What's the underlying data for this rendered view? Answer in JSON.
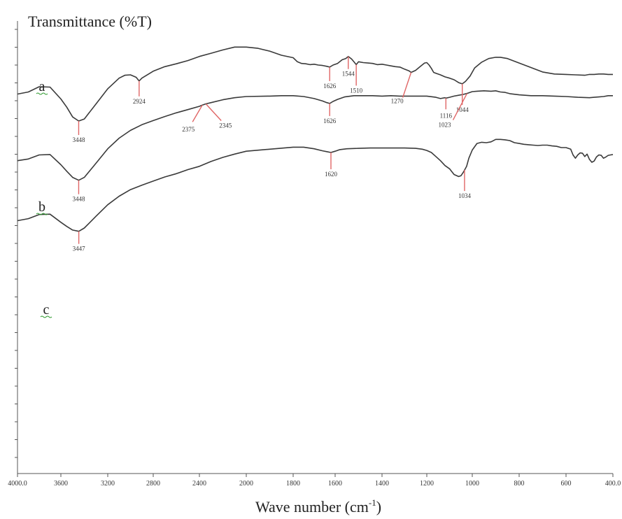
{
  "chart_data": {
    "type": "line",
    "title": "Transmittance (%T)",
    "xlabel": "Wave number (cm",
    "xlabel_sup": "-1",
    "xlabel_end": ")",
    "xlim": [
      4000,
      400
    ],
    "x_reversed": true,
    "x_ticks": [
      4000,
      3600,
      3200,
      2800,
      2400,
      2000,
      1800,
      1600,
      1400,
      1200,
      1000,
      800,
      600,
      400
    ],
    "x_tick_labels": [
      "4000.0",
      "3600",
      "3200",
      "2800",
      "2400",
      "2000",
      "1800",
      "1600",
      "1400",
      "1200",
      "1000",
      "800",
      "600",
      "400.0"
    ],
    "ylim": [
      0,
      100
    ],
    "grid": false,
    "colors": {
      "line": "#3a3a3a",
      "peak_marker": "#e06666",
      "axis": "#555555",
      "series_label_underline": "#2e9a2e"
    },
    "series": [
      {
        "name": "a",
        "x": [
          4000,
          3900,
          3800,
          3700,
          3600,
          3550,
          3500,
          3448,
          3400,
          3300,
          3200,
          3100,
          3050,
          3000,
          2950,
          2924,
          2900,
          2800,
          2700,
          2600,
          2500,
          2400,
          2300,
          2200,
          2100,
          2000,
          1950,
          1900,
          1850,
          1800,
          1780,
          1760,
          1740,
          1720,
          1700,
          1680,
          1660,
          1640,
          1626,
          1610,
          1590,
          1570,
          1555,
          1544,
          1530,
          1520,
          1510,
          1500,
          1480,
          1460,
          1440,
          1420,
          1400,
          1380,
          1360,
          1340,
          1320,
          1300,
          1280,
          1270,
          1250,
          1230,
          1210,
          1200,
          1190,
          1180,
          1170,
          1160,
          1140,
          1120,
          1100,
          1080,
          1060,
          1044,
          1030,
          1010,
          990,
          960,
          930,
          900,
          880,
          850,
          800,
          750,
          700,
          650,
          600,
          560,
          520,
          500,
          480,
          460,
          440,
          420,
          400
        ],
        "y": [
          92.9,
          93.4,
          94.7,
          94.6,
          91.7,
          89.7,
          87.3,
          86.3,
          86.8,
          90.5,
          94.2,
          96.8,
          97.5,
          97.6,
          97.0,
          96.1,
          96.8,
          98.5,
          99.6,
          100.3,
          101.1,
          102.1,
          102.9,
          103.7,
          104.4,
          104.4,
          104.1,
          103.4,
          102.4,
          101.8,
          100.8,
          100.4,
          100.3,
          100.1,
          100.2,
          100.0,
          99.9,
          99.7,
          99.5,
          100.0,
          100.4,
          101.3,
          101.6,
          102.1,
          101.5,
          100.8,
          100.1,
          100.8,
          100.6,
          100.5,
          100.4,
          100.1,
          100.2,
          100.0,
          99.8,
          99.6,
          99.5,
          99.0,
          98.6,
          98.2,
          98.7,
          99.6,
          100.5,
          100.6,
          100.0,
          99.2,
          98.2,
          98.0,
          97.6,
          97.1,
          96.8,
          96.4,
          95.7,
          95.4,
          96.0,
          97.3,
          99.3,
          100.7,
          101.6,
          101.9,
          101.9,
          101.6,
          100.5,
          99.4,
          98.3,
          97.8,
          97.7,
          97.6,
          97.5,
          97.7,
          97.7,
          97.8,
          97.8,
          97.7,
          97.7
        ]
      },
      {
        "name": "b",
        "x": [
          4000,
          3900,
          3800,
          3700,
          3600,
          3550,
          3500,
          3448,
          3400,
          3300,
          3200,
          3100,
          3000,
          2900,
          2800,
          2700,
          2600,
          2500,
          2400,
          2375,
          2345,
          2300,
          2200,
          2100,
          2000,
          1900,
          1850,
          1800,
          1750,
          1700,
          1660,
          1640,
          1626,
          1610,
          1590,
          1560,
          1520,
          1480,
          1440,
          1400,
          1360,
          1320,
          1280,
          1240,
          1200,
          1160,
          1140,
          1120,
          1116,
          1100,
          1080,
          1060,
          1040,
          1020,
          1000,
          980,
          950,
          920,
          900,
          880,
          860,
          840,
          800,
          750,
          700,
          650,
          600,
          550,
          500,
          480,
          460,
          440,
          420,
          400
        ],
        "y": [
          76.6,
          77.0,
          78.0,
          78.1,
          75.6,
          74.0,
          72.5,
          71.8,
          72.5,
          76.0,
          79.5,
          82.1,
          84.0,
          85.4,
          86.4,
          87.4,
          88.3,
          89.1,
          89.9,
          90.2,
          90.5,
          90.8,
          91.5,
          92.0,
          92.3,
          92.4,
          92.5,
          92.5,
          92.3,
          91.8,
          91.2,
          90.8,
          90.6,
          91.1,
          91.6,
          92.2,
          92.5,
          92.5,
          92.5,
          92.4,
          92.5,
          92.4,
          92.4,
          92.4,
          92.4,
          92.1,
          91.8,
          92.0,
          91.9,
          92.1,
          92.4,
          92.6,
          92.8,
          93.1,
          93.5,
          93.6,
          93.7,
          93.6,
          93.7,
          93.4,
          93.3,
          93.0,
          92.7,
          92.5,
          92.5,
          92.4,
          92.3,
          92.1,
          92.0,
          92.1,
          92.2,
          92.3,
          92.5,
          92.5
        ]
      },
      {
        "name": "c",
        "x": [
          4000,
          3900,
          3800,
          3700,
          3600,
          3550,
          3500,
          3447,
          3400,
          3300,
          3200,
          3100,
          3000,
          2900,
          2800,
          2700,
          2600,
          2500,
          2400,
          2300,
          2200,
          2100,
          2000,
          1900,
          1800,
          1750,
          1700,
          1660,
          1640,
          1620,
          1600,
          1580,
          1550,
          1500,
          1450,
          1400,
          1350,
          1300,
          1250,
          1220,
          1200,
          1180,
          1160,
          1140,
          1120,
          1100,
          1080,
          1060,
          1050,
          1040,
          1034,
          1025,
          1015,
          1000,
          980,
          960,
          940,
          920,
          900,
          880,
          860,
          840,
          820,
          800,
          780,
          760,
          740,
          720,
          700,
          680,
          660,
          640,
          620,
          600,
          580,
          570,
          560,
          550,
          540,
          530,
          520,
          510,
          500,
          490,
          480,
          470,
          460,
          450,
          440,
          430,
          420,
          410,
          400
        ],
        "y": [
          61.9,
          62.4,
          63.4,
          63.5,
          61.5,
          60.5,
          59.6,
          59.3,
          60.1,
          63.0,
          65.8,
          67.9,
          69.5,
          70.6,
          71.6,
          72.6,
          73.4,
          74.4,
          75.2,
          76.4,
          77.4,
          78.2,
          78.9,
          79.4,
          79.9,
          79.9,
          79.5,
          79.0,
          78.8,
          78.6,
          78.9,
          79.3,
          79.5,
          79.6,
          79.7,
          79.7,
          79.7,
          79.7,
          79.6,
          79.4,
          79.1,
          78.6,
          77.6,
          76.6,
          75.4,
          74.6,
          73.2,
          72.7,
          72.9,
          73.7,
          74.3,
          75.2,
          77.2,
          79.2,
          80.8,
          81.1,
          81.0,
          81.2,
          81.8,
          81.8,
          81.7,
          81.5,
          81.0,
          80.8,
          80.6,
          80.5,
          80.4,
          80.3,
          80.4,
          80.4,
          80.2,
          80.1,
          79.8,
          79.8,
          79.4,
          78.0,
          77.2,
          78.0,
          78.5,
          78.4,
          77.6,
          78.2,
          76.9,
          76.2,
          76.5,
          77.5,
          78.0,
          77.9,
          77.2,
          77.5,
          77.9,
          78.0,
          78.1
        ]
      }
    ],
    "annotations": [
      {
        "series": "a",
        "x": 3448,
        "label": "3448"
      },
      {
        "series": "a",
        "x": 2924,
        "label": "2924"
      },
      {
        "series": "a",
        "x": 1626,
        "label": "1626"
      },
      {
        "series": "a",
        "x": 1544,
        "label": "1544"
      },
      {
        "series": "a",
        "x": 1510,
        "label": "1510"
      },
      {
        "series": "a",
        "x": 1270,
        "label": "1270"
      },
      {
        "series": "a",
        "x": 1044,
        "label": "1044"
      },
      {
        "series": "b",
        "x": 3448,
        "label": "3448"
      },
      {
        "series": "b",
        "x": 2375,
        "label": "2375"
      },
      {
        "series": "b",
        "x": 2345,
        "label": "2345"
      },
      {
        "series": "b",
        "x": 1626,
        "label": "1626"
      },
      {
        "series": "b",
        "x": 1023,
        "label": "1023"
      },
      {
        "series": "b",
        "x": 1116,
        "label": "1116"
      },
      {
        "series": "c",
        "x": 3447,
        "label": "3447"
      },
      {
        "series": "c",
        "x": 1620,
        "label": "1620"
      },
      {
        "series": "c",
        "x": 1034,
        "label": "1034"
      }
    ]
  }
}
